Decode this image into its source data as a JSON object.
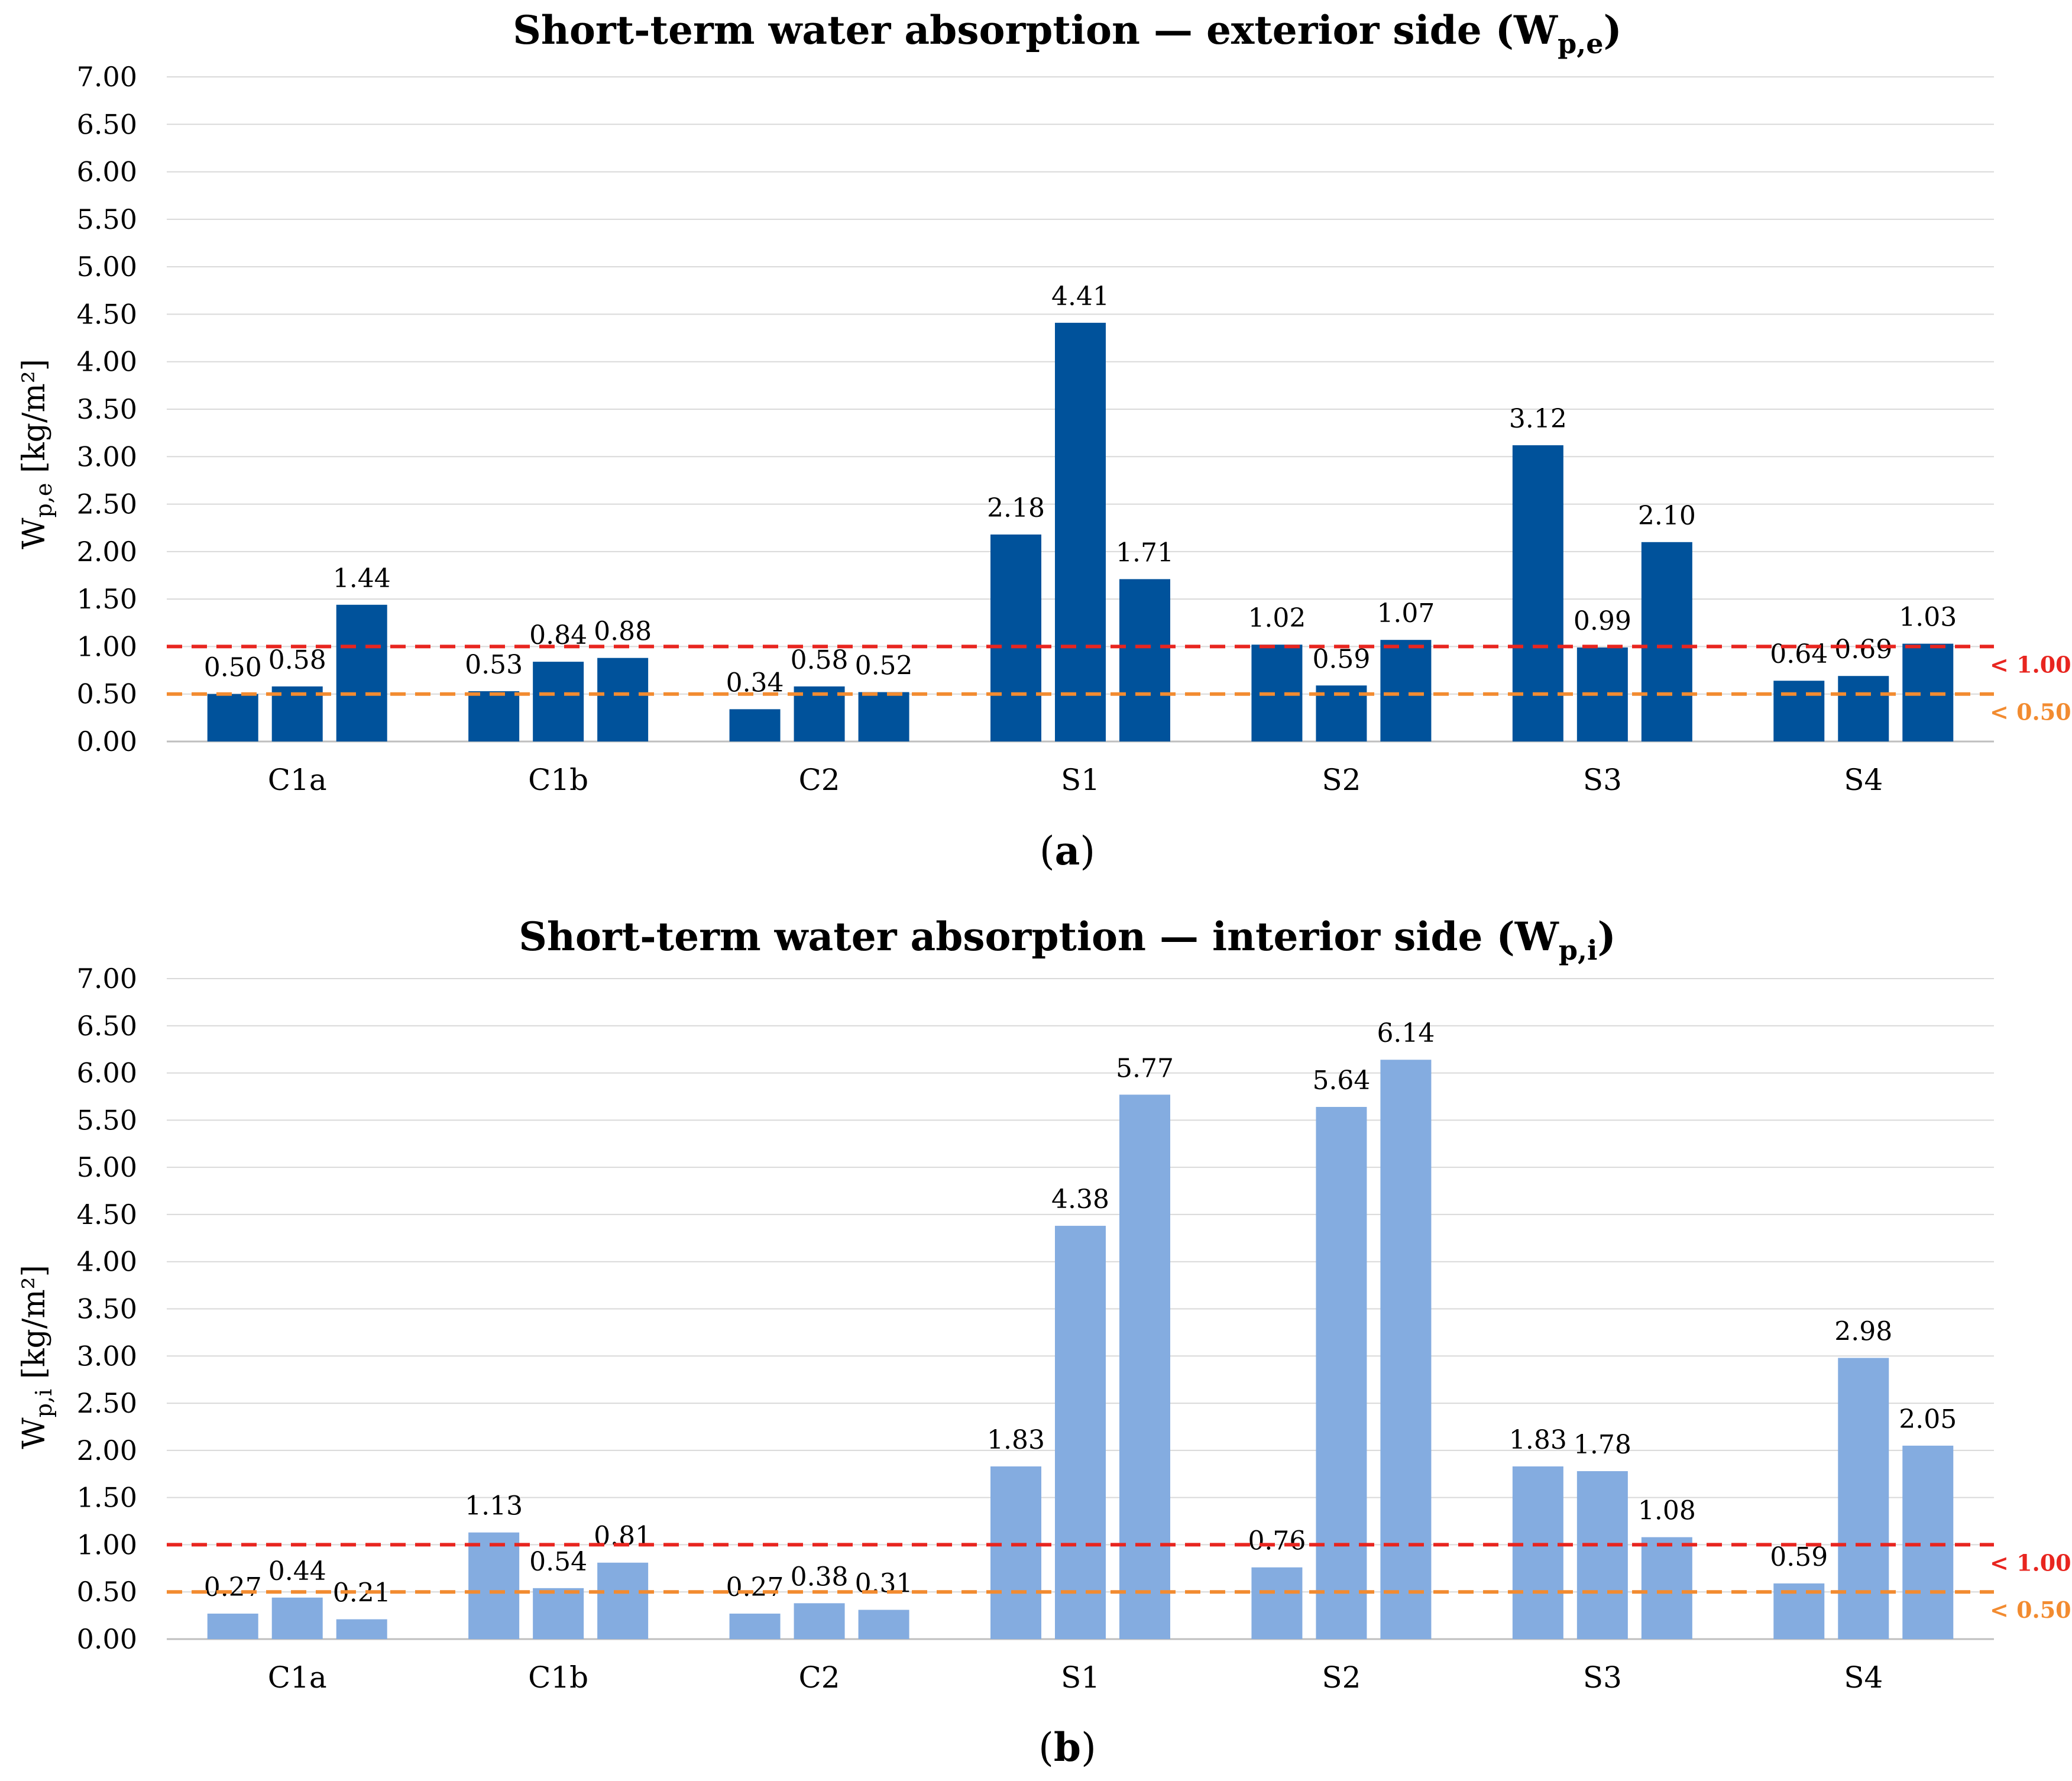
{
  "chart_data": [
    {
      "type": "bar",
      "panel_label": "a",
      "title_main": "Short-term water absorption — exterior side (W",
      "title_sub": "p,e",
      "title_close": ")",
      "ylabel_main": "W",
      "ylabel_sub": "p,e",
      "ylabel_unit": " [kg/m²]",
      "bar_color": "#00529B",
      "ylim": [
        0,
        7
      ],
      "yticks": [
        "0.00",
        "0.50",
        "1.00",
        "1.50",
        "2.00",
        "2.50",
        "3.00",
        "3.50",
        "4.00",
        "4.50",
        "5.00",
        "5.50",
        "6.00",
        "6.50",
        "7.00"
      ],
      "categories": [
        "C1a",
        "C1b",
        "C2",
        "S1",
        "S2",
        "S3",
        "S4"
      ],
      "values": [
        [
          0.5,
          0.58,
          1.44
        ],
        [
          0.53,
          0.84,
          0.88
        ],
        [
          0.34,
          0.58,
          0.52
        ],
        [
          2.18,
          4.41,
          1.71
        ],
        [
          1.02,
          0.59,
          1.07
        ],
        [
          3.12,
          0.99,
          2.1
        ],
        [
          0.64,
          0.69,
          1.03
        ]
      ],
      "labels": [
        [
          "0.50",
          "0.58",
          "1.44"
        ],
        [
          "0.53",
          "0.84",
          "0.88"
        ],
        [
          "0.34",
          "0.58",
          "0.52"
        ],
        [
          "2.18",
          "4.41",
          "1.71"
        ],
        [
          "1.02",
          "0.59",
          "1.07"
        ],
        [
          "3.12",
          "0.99",
          "2.10"
        ],
        [
          "0.64",
          "0.69",
          "1.03"
        ]
      ],
      "thresholds": [
        {
          "value": 1.0,
          "label": "< 1.00",
          "color": "#E8251F"
        },
        {
          "value": 0.5,
          "label": "< 0.50",
          "color": "#F28B30"
        }
      ]
    },
    {
      "type": "bar",
      "panel_label": "b",
      "title_main": "Short-term water absorption — interior side (W",
      "title_sub": "p,i",
      "title_close": ")",
      "ylabel_main": "W",
      "ylabel_sub": "p,i",
      "ylabel_unit": " [kg/m²]",
      "bar_color": "#84ACE0",
      "ylim": [
        0,
        7
      ],
      "yticks": [
        "0.00",
        "0.50",
        "1.00",
        "1.50",
        "2.00",
        "2.50",
        "3.00",
        "3.50",
        "4.00",
        "4.50",
        "5.00",
        "5.50",
        "6.00",
        "6.50",
        "7.00"
      ],
      "categories": [
        "C1a",
        "C1b",
        "C2",
        "S1",
        "S2",
        "S3",
        "S4"
      ],
      "values": [
        [
          0.27,
          0.44,
          0.21
        ],
        [
          1.13,
          0.54,
          0.81
        ],
        [
          0.27,
          0.38,
          0.31
        ],
        [
          1.83,
          4.38,
          5.77
        ],
        [
          0.76,
          5.64,
          6.14
        ],
        [
          1.83,
          1.78,
          1.08
        ],
        [
          0.59,
          2.98,
          2.05
        ]
      ],
      "labels": [
        [
          "0.27",
          "0.44",
          "0.21"
        ],
        [
          "1.13",
          "0.54",
          "0.81"
        ],
        [
          "0.27",
          "0.38",
          "0.31"
        ],
        [
          "1.83",
          "4.38",
          "5.77"
        ],
        [
          "0.76",
          "5.64",
          "6.14"
        ],
        [
          "1.83",
          "1.78",
          "1.08"
        ],
        [
          "0.59",
          "2.98",
          "2.05"
        ]
      ],
      "thresholds": [
        {
          "value": 1.0,
          "label": "< 1.00",
          "color": "#E8251F"
        },
        {
          "value": 0.5,
          "label": "< 0.50",
          "color": "#F28B30"
        }
      ]
    }
  ]
}
